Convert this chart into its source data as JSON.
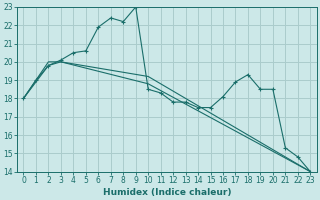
{
  "xlabel": "Humidex (Indice chaleur)",
  "bg_color": "#cce8e8",
  "grid_color": "#aacccc",
  "line_color": "#1a6e6a",
  "xlim": [
    -0.5,
    23.5
  ],
  "ylim": [
    14,
    23
  ],
  "xticks": [
    0,
    1,
    2,
    3,
    4,
    5,
    6,
    7,
    8,
    9,
    10,
    11,
    12,
    13,
    14,
    15,
    16,
    17,
    18,
    19,
    20,
    21,
    22,
    23
  ],
  "yticks": [
    14,
    15,
    16,
    17,
    18,
    19,
    20,
    21,
    22,
    23
  ],
  "series1_x": [
    0,
    1,
    2,
    3,
    4,
    5,
    6,
    7,
    8,
    9,
    10,
    11,
    12,
    13,
    14,
    15,
    16,
    17,
    18,
    19,
    20,
    21,
    22,
    23
  ],
  "series1_y": [
    18.0,
    19.0,
    19.8,
    20.1,
    20.5,
    20.6,
    21.9,
    22.4,
    22.2,
    23.0,
    18.5,
    18.3,
    17.8,
    17.8,
    17.5,
    17.5,
    18.1,
    18.9,
    19.3,
    18.5,
    18.5,
    15.3,
    14.8,
    14.0
  ],
  "series2_x": [
    0,
    2,
    3,
    10,
    23
  ],
  "series2_y": [
    18.0,
    20.0,
    20.0,
    19.2,
    14.0
  ],
  "series3_x": [
    0,
    2,
    3,
    10,
    23
  ],
  "series3_y": [
    18.0,
    19.8,
    20.0,
    18.8,
    14.0
  ],
  "xlabel_fontsize": 6.5,
  "tick_fontsize": 5.5
}
